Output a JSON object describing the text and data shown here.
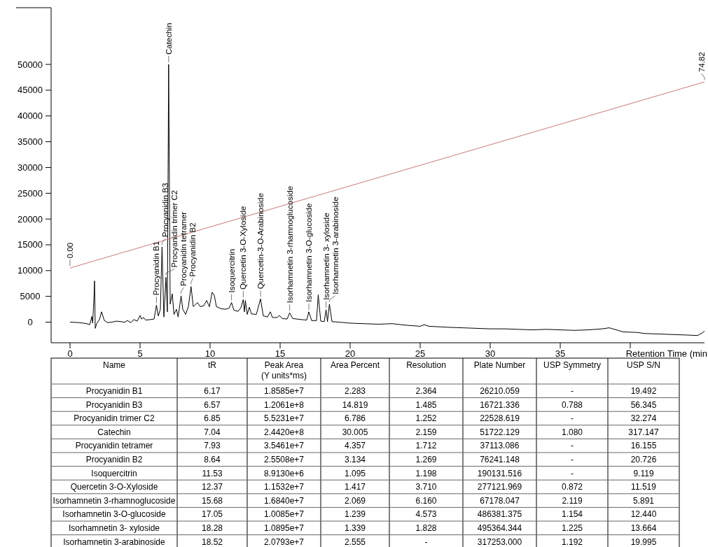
{
  "chart_data": {
    "type": "line",
    "xlabel": "Retention Time (min",
    "xlim": [
      -1.35,
      45.3
    ],
    "ylim": [
      -4000,
      61000
    ],
    "xticks": [
      0,
      5,
      10,
      15,
      20,
      25,
      30,
      35,
      {
        "value": 40,
        "label": null
      }
    ],
    "yticks": [
      0,
      5000,
      10000,
      15000,
      20000,
      25000,
      30000,
      35000,
      40000,
      45000,
      50000
    ],
    "grid": false,
    "series": [
      {
        "color": "#000000",
        "x": [
          0,
          0.7,
          1.2,
          1.4,
          1.5,
          1.55,
          1.62,
          1.72,
          1.75,
          1.8,
          1.9,
          2.1,
          2.25,
          2.45,
          2.7,
          3.0,
          3.3,
          3.6,
          3.9,
          4.1,
          4.35,
          4.55,
          4.8,
          5.0,
          5.1,
          5.25,
          5.4,
          5.75,
          6.0,
          6.17,
          6.3,
          6.45,
          6.57,
          6.7,
          6.85,
          6.95,
          7.04,
          7.15,
          7.3,
          7.42,
          7.6,
          7.72,
          7.93,
          8.05,
          8.25,
          8.45,
          8.64,
          8.8,
          9.1,
          9.3,
          9.55,
          9.75,
          9.95,
          10.15,
          10.3,
          10.45,
          10.8,
          11.1,
          11.35,
          11.53,
          11.7,
          12.0,
          12.2,
          12.37,
          12.45,
          12.52,
          12.65,
          12.8,
          12.95,
          13.3,
          13.6,
          13.8,
          14.1,
          14.3,
          14.45,
          14.8,
          14.95,
          15.15,
          15.5,
          15.68,
          15.9,
          16.5,
          16.9,
          17.05,
          17.25,
          17.6,
          17.72,
          17.9,
          18.15,
          18.28,
          18.38,
          18.52,
          18.7,
          19.2,
          20,
          21,
          22,
          23,
          24,
          25,
          25.3,
          25.6,
          27,
          28,
          29,
          30,
          31,
          32,
          33,
          34,
          35,
          36,
          37,
          38,
          38.5,
          39,
          39.5,
          40.5,
          41,
          42,
          43,
          44,
          44.8,
          45.2,
          45.3
        ],
        "values": [
          0,
          -100,
          -300,
          -500,
          400,
          1100,
          -200,
          5500,
          8000,
          -1200,
          -300,
          500,
          2000,
          300,
          -100,
          0,
          200,
          100,
          0,
          300,
          -100,
          500,
          200,
          1300,
          600,
          900,
          400,
          500,
          600,
          3300,
          1200,
          2500,
          14600,
          1000,
          8700,
          2000,
          50000,
          3500,
          5500,
          1500,
          2500,
          1000,
          5100,
          2500,
          1500,
          3000,
          6900,
          3000,
          3800,
          3000,
          3200,
          4200,
          3000,
          5800,
          5200,
          3000,
          2600,
          2500,
          2700,
          3800,
          2300,
          2100,
          2800,
          4400,
          2000,
          4200,
          1500,
          2900,
          1600,
          1500,
          4500,
          1200,
          1000,
          2000,
          900,
          900,
          1300,
          700,
          600,
          1800,
          700,
          500,
          400,
          2000,
          300,
          300,
          5300,
          200,
          100,
          2400,
          100,
          3500,
          100,
          0,
          -200,
          -300,
          -400,
          -300,
          -600,
          -800,
          -500,
          -800,
          -1000,
          -1100,
          -1200,
          -1300,
          -1300,
          -1400,
          -1500,
          -1400,
          -1500,
          -1600,
          -1500,
          -1300,
          -1100,
          -1500,
          -1900,
          -2000,
          -2200,
          -2300,
          -2400,
          -2500,
          -2600,
          -2000,
          -1700
        ]
      },
      {
        "color": "#c87878",
        "x": [
          0,
          45.3
        ],
        "values": [
          10500,
          46600
        ]
      }
    ],
    "annotations": [
      {
        "text": "0.00",
        "x": 0,
        "y": 10500
      },
      {
        "text": "74.82",
        "x": 45.3,
        "y": 46600
      },
      {
        "text": "Procyanidin B1",
        "x": 6.17,
        "y": 3300
      },
      {
        "text": "Procyanidin B3",
        "x": 6.57,
        "y": 14600
      },
      {
        "text": "Procyanidin trimer C2",
        "x": 6.85,
        "y": 8700
      },
      {
        "text": "Catechin",
        "x": 7.04,
        "y": 50000
      },
      {
        "text": "Procyanidin tetramer",
        "x": 7.93,
        "y": 5100
      },
      {
        "text": "Procyanidin B2",
        "x": 8.64,
        "y": 6900
      },
      {
        "text": "Isoquercitrin",
        "x": 11.53,
        "y": 3800
      },
      {
        "text": "Quercetin 3-O-Xyloside",
        "x": 12.37,
        "y": 4400
      },
      {
        "text": "Quercetin-3-O-Arabinoside",
        "x": 13.6,
        "y": 4500
      },
      {
        "text": "Isorhamnetin 3-rhamnoglucoside",
        "x": 15.68,
        "y": 1800
      },
      {
        "text": "Isorhamnetin 3-O-glucoside",
        "x": 17.05,
        "y": 2000
      },
      {
        "text": "Isorhamnetin 3- xyloside",
        "x": 18.28,
        "y": 2400
      },
      {
        "text": "Isorhamnetin 3-arabinoside",
        "x": 18.52,
        "y": 3500
      },
      "Name",
      "tR",
      "Peak Area (Y units*ms)",
      "Area Percent",
      "Resolution",
      "Plate Number",
      "USP Symmetry",
      "USP S/N",
      "Procyanidin B1",
      "6.17",
      "1.8585e+7",
      "2.283",
      "2.364",
      "26210.059",
      "-",
      "19.492",
      "Procyanidin B3",
      "6.57",
      "1.2061e+8",
      "14.819",
      "1.485",
      "16721.336",
      "0.788",
      "56.345",
      "Procyanidin trimer C2",
      "6.85",
      "5.5231e+7",
      "6.786",
      "1.252",
      "22528.619",
      "-",
      "32.274",
      "Catechin",
      "7.04",
      "2.4420e+8",
      "30.005",
      "2.159",
      "51722.129",
      "1.080",
      "317.147",
      "Procyanidin tetramer",
      "7.93",
      "3.5461e+7",
      "4.357",
      "1.712",
      "37113.086",
      "-",
      "16.155",
      "Procyanidin B2",
      "8.64",
      "2.5508e+7",
      "3.134",
      "1.269",
      "76241.148",
      "-",
      "20.726",
      "Isoquercitrin",
      "11.53",
      "8.9130e+6",
      "1.095",
      "1.198",
      "190131.516",
      "-",
      "9.119",
      "Quercetin 3-O-Xyloside",
      "12.37",
      "1.1532e+7",
      "1.417",
      "3.710",
      "277121.969",
      "0.872",
      "11.519",
      "Isorhamnetin 3-rhamnoglucoside",
      "15.68",
      "1.6840e+7",
      "2.069",
      "6.160",
      "67178.047",
      "2.119",
      "5.891",
      "Isorhamnetin 3-O-glucoside",
      "17.05",
      "1.0085e+7",
      "1.239",
      "4.573",
      "486381.375",
      "1.154",
      "12.440",
      "Isorhamnetin 3- xyloside",
      "18.28",
      "1.0895e+7",
      "1.339",
      "1.828",
      "495364.344",
      "1.225",
      "13.664",
      "Isorhamnetin 3-arabinoside",
      "18.52",
      "2.0793e+7",
      "2.555",
      "-",
      "317253.000",
      "1.192",
      "19.995"
    ]
  }
}
